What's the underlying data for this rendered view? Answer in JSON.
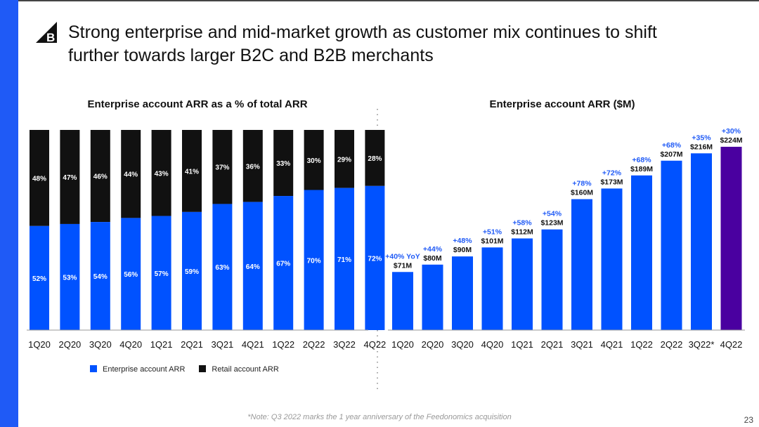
{
  "slide": {
    "title_line1": "Strong enterprise and mid-market growth as customer mix continues to shift",
    "title_line2": "further towards larger B2C and B2B merchants",
    "footnote": "*Note: Q3 2022 marks the 1 year anniversary of the Feedonomics acquisition",
    "page_number": "23",
    "logo": "bigcommerce-logo",
    "colors": {
      "accent": "#1f5af6",
      "enterprise": "#0052ff",
      "retail": "#111111",
      "highlight": "#4a00a0"
    }
  },
  "chart_data": [
    {
      "type": "bar",
      "stacked": true,
      "title": "Enterprise account ARR as a % of total ARR",
      "categories": [
        "1Q20",
        "2Q20",
        "3Q20",
        "4Q20",
        "1Q21",
        "2Q21",
        "3Q21",
        "4Q21",
        "1Q22",
        "2Q22",
        "3Q22",
        "4Q22"
      ],
      "series": [
        {
          "name": "Enterprise account ARR",
          "color": "#0052ff",
          "values": [
            52,
            53,
            54,
            56,
            57,
            59,
            63,
            64,
            67,
            70,
            71,
            72
          ],
          "labels": [
            "52%",
            "53%",
            "54%",
            "56%",
            "57%",
            "59%",
            "63%",
            "64%",
            "67%",
            "70%",
            "71%",
            "72%"
          ]
        },
        {
          "name": "Retail account ARR",
          "color": "#111111",
          "values": [
            48,
            47,
            46,
            44,
            43,
            41,
            37,
            36,
            33,
            30,
            29,
            28
          ],
          "labels": [
            "48%",
            "47%",
            "46%",
            "44%",
            "43%",
            "41%",
            "37%",
            "36%",
            "33%",
            "30%",
            "29%",
            "28%"
          ]
        }
      ],
      "ylim": [
        0,
        100
      ],
      "grid": false,
      "legend": "bottom"
    },
    {
      "type": "bar",
      "title": "Enterprise account ARR ($M)",
      "categories": [
        "1Q20",
        "2Q20",
        "3Q20",
        "4Q20",
        "1Q21",
        "2Q21",
        "3Q21",
        "4Q21",
        "1Q22",
        "2Q22",
        "3Q22*",
        "4Q22"
      ],
      "values": [
        71,
        80,
        90,
        101,
        112,
        123,
        160,
        173,
        189,
        207,
        216,
        224
      ],
      "value_labels": [
        "$71M",
        "$80M",
        "$90M",
        "$101M",
        "$112M",
        "$123M",
        "$160M",
        "$173M",
        "$189M",
        "$207M",
        "$216M",
        "$224M"
      ],
      "growth_labels": [
        "+40% YoY",
        "+44%",
        "+48%",
        "+51%",
        "+58%",
        "+54%",
        "+78%",
        "+72%",
        "+68%",
        "+68%",
        "+35%",
        "+30%"
      ],
      "highlight_index": 11,
      "ylim": [
        0,
        224
      ],
      "grid": false
    }
  ]
}
